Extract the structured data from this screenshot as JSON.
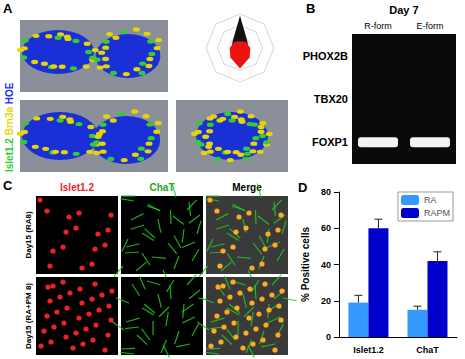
{
  "figure": {
    "A": {
      "label": "A",
      "stains": [
        {
          "text": "Islet1.2",
          "color": "#33cc33"
        },
        {
          "text": "Brn3a",
          "color": "#e6d600"
        },
        {
          "text": "HOE",
          "color": "#2233ee"
        }
      ]
    },
    "B": {
      "label": "B",
      "title": "Day 7",
      "columns": [
        "R-form",
        "E-form"
      ],
      "rows": [
        {
          "gene": "PHOX2B",
          "bands": [
            false,
            false
          ]
        },
        {
          "gene": "TBX20",
          "bands": [
            false,
            false
          ]
        },
        {
          "gene": "FOXP1",
          "bands": [
            true,
            true
          ]
        }
      ]
    },
    "C": {
      "label": "C",
      "columns": [
        {
          "text": "Islet1.2",
          "color": "#ee2222"
        },
        {
          "text": "ChaT",
          "color": "#22aa22"
        },
        {
          "text": "Merge",
          "color": "#000000"
        }
      ],
      "rows": [
        "Day15 (RA8)",
        "Day15 (RA+PM 8)"
      ]
    },
    "D": {
      "label": "D"
    }
  },
  "chart_data": {
    "type": "bar",
    "y_label": "% Positive cells",
    "categories": [
      "Islet1.2",
      "ChaT"
    ],
    "series": [
      {
        "name": "RA",
        "color": "#3399ff",
        "values": [
          19,
          15
        ],
        "errors": [
          4,
          2
        ]
      },
      {
        "name": "RAPM",
        "color": "#0000cc",
        "values": [
          60,
          42
        ],
        "errors": [
          5,
          5
        ]
      }
    ],
    "ylim": [
      0,
      80
    ],
    "yticks": [
      0,
      20,
      40,
      60,
      80
    ],
    "legend": "top-right",
    "grid": false
  }
}
